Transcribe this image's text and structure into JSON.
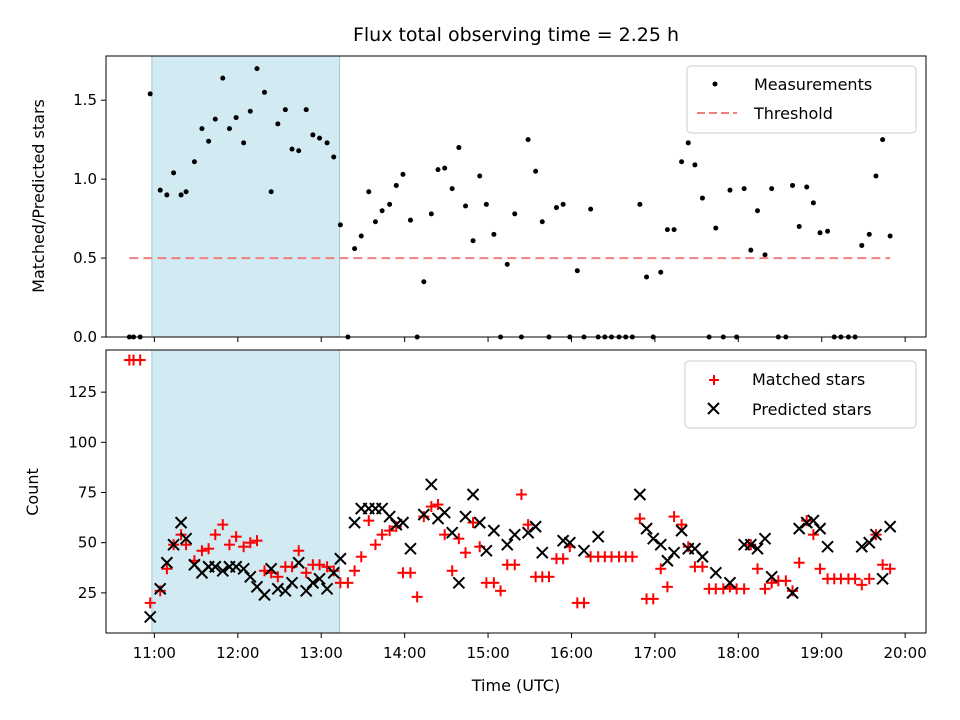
{
  "chart_data": [
    {
      "type": "scatter",
      "title": "Flux total observing time = 2.25 h",
      "xlabel": "",
      "ylabel": "Matched/Predicted stars",
      "xlim": [
        10.42,
        20.25
      ],
      "ylim": [
        0,
        1.78
      ],
      "yticks": [
        0.0,
        0.5,
        1.0,
        1.5
      ],
      "ytick_labels": [
        "0.0",
        "0.5",
        "1.0",
        "1.5"
      ],
      "xticks": [
        11,
        12,
        13,
        14,
        15,
        16,
        17,
        18,
        19,
        20
      ],
      "xtick_labels": [
        "",
        "",
        "",
        "",
        "",
        "",
        "",
        "",
        "",
        ""
      ],
      "highlight_span": [
        10.97,
        13.22
      ],
      "highlight_color": "#add8e6",
      "legend_position": "top-right",
      "series": [
        {
          "name": "Measurements",
          "marker": "dot",
          "color": "#000000",
          "x": [
            10.7,
            10.75,
            10.83,
            10.95,
            11.07,
            11.15,
            11.23,
            11.32,
            11.38,
            11.48,
            11.57,
            11.65,
            11.73,
            11.82,
            11.9,
            11.98,
            12.07,
            12.15,
            12.23,
            12.32,
            12.4,
            12.48,
            12.57,
            12.65,
            12.73,
            12.82,
            12.9,
            12.98,
            13.07,
            13.15,
            13.23,
            13.32,
            13.4,
            13.48,
            13.57,
            13.65,
            13.73,
            13.82,
            13.9,
            13.98,
            14.07,
            14.15,
            14.23,
            14.32,
            14.4,
            14.48,
            14.57,
            14.65,
            14.73,
            14.82,
            14.9,
            14.98,
            15.07,
            15.15,
            15.23,
            15.32,
            15.4,
            15.48,
            15.57,
            15.65,
            15.73,
            15.82,
            15.9,
            15.98,
            16.07,
            16.15,
            16.23,
            16.32,
            16.4,
            16.48,
            16.57,
            16.65,
            16.73,
            16.82,
            16.9,
            16.98,
            17.07,
            17.15,
            17.23,
            17.32,
            17.4,
            17.48,
            17.57,
            17.65,
            17.73,
            17.82,
            17.9,
            17.98,
            18.07,
            18.15,
            18.23,
            18.32,
            18.4,
            18.48,
            18.57,
            18.65,
            18.73,
            18.82,
            18.9,
            18.98,
            19.07,
            19.15,
            19.23,
            19.32,
            19.4,
            19.48,
            19.57,
            19.65,
            19.73,
            19.82
          ],
          "y": [
            0,
            0,
            0,
            1.54,
            0.93,
            0.9,
            1.04,
            0.9,
            0.92,
            1.11,
            1.32,
            1.24,
            1.38,
            1.64,
            1.32,
            1.39,
            1.23,
            1.43,
            1.7,
            1.55,
            0.92,
            1.35,
            1.44,
            1.19,
            1.18,
            1.44,
            1.28,
            1.26,
            1.23,
            1.14,
            0.71,
            0,
            0.56,
            0.64,
            0.92,
            0.73,
            0.8,
            0.84,
            0.96,
            1.03,
            0.74,
            0,
            0.35,
            0.78,
            1.06,
            1.07,
            0.94,
            1.2,
            0.83,
            0.61,
            1.02,
            0.84,
            0.65,
            0,
            0.46,
            0.78,
            0,
            1.25,
            1.05,
            0.73,
            0,
            0.82,
            0.84,
            0,
            0.42,
            0,
            0.81,
            0,
            0,
            0,
            0,
            0,
            0,
            0.84,
            0.38,
            0,
            0.41,
            0.68,
            0.68,
            1.11,
            1.23,
            1.09,
            0.88,
            0,
            0.69,
            0,
            0.93,
            0,
            0.94,
            0.55,
            0.8,
            0.52,
            0.94,
            0,
            0,
            0.96,
            0.7,
            0.95,
            0.85,
            0.66,
            0.67,
            0,
            0,
            0,
            0,
            0.58,
            0.65,
            1.02,
            1.25,
            0.64
          ]
        },
        {
          "name": "Threshold",
          "marker": "dashed-line",
          "color": "#f08080",
          "x": [
            10.7,
            19.82
          ],
          "y": [
            0.5,
            0.5
          ]
        }
      ]
    },
    {
      "type": "scatter",
      "title": "",
      "xlabel": "Time (UTC)",
      "ylabel": "Count",
      "xlim": [
        10.42,
        20.25
      ],
      "ylim": [
        5,
        146
      ],
      "yticks": [
        25,
        50,
        75,
        100,
        125
      ],
      "ytick_labels": [
        "25",
        "50",
        "75",
        "100",
        "125"
      ],
      "xticks": [
        11,
        12,
        13,
        14,
        15,
        16,
        17,
        18,
        19,
        20
      ],
      "xtick_labels": [
        "11:00",
        "12:00",
        "13:00",
        "14:00",
        "15:00",
        "16:00",
        "17:00",
        "18:00",
        "19:00",
        "20:00"
      ],
      "highlight_span": [
        10.97,
        13.22
      ],
      "highlight_color": "#add8e6",
      "legend_position": "top-right",
      "series": [
        {
          "name": "Matched stars",
          "marker": "plus",
          "color": "#ff0000",
          "x": [
            10.7,
            10.75,
            10.83,
            10.95,
            11.07,
            11.15,
            11.23,
            11.32,
            11.38,
            11.48,
            11.57,
            11.65,
            11.73,
            11.82,
            11.9,
            11.98,
            12.07,
            12.15,
            12.23,
            12.32,
            12.4,
            12.48,
            12.57,
            12.65,
            12.73,
            12.82,
            12.9,
            12.98,
            13.07,
            13.15,
            13.23,
            13.32,
            13.4,
            13.48,
            13.57,
            13.65,
            13.73,
            13.82,
            13.9,
            13.98,
            14.07,
            14.15,
            14.23,
            14.32,
            14.4,
            14.48,
            14.57,
            14.65,
            14.73,
            14.82,
            14.9,
            14.98,
            15.07,
            15.15,
            15.23,
            15.32,
            15.4,
            15.48,
            15.57,
            15.65,
            15.73,
            15.82,
            15.9,
            15.98,
            16.07,
            16.15,
            16.23,
            16.32,
            16.4,
            16.48,
            16.57,
            16.65,
            16.73,
            16.82,
            16.9,
            16.98,
            17.07,
            17.15,
            17.23,
            17.32,
            17.4,
            17.48,
            17.57,
            17.65,
            17.73,
            17.82,
            17.9,
            17.98,
            18.07,
            18.15,
            18.23,
            18.32,
            18.4,
            18.48,
            18.57,
            18.65,
            18.73,
            18.82,
            18.9,
            18.98,
            19.07,
            19.15,
            19.23,
            19.32,
            19.4,
            19.48,
            19.57,
            19.65,
            19.73,
            19.82
          ],
          "y": [
            141,
            141,
            141,
            20,
            26,
            37,
            49,
            54,
            49,
            41,
            46,
            47,
            54,
            59,
            49,
            53,
            48,
            50,
            51,
            36,
            35,
            33,
            38,
            38,
            46,
            35,
            39,
            39,
            38,
            36,
            30,
            30,
            36,
            43,
            61,
            49,
            54,
            56,
            58,
            35,
            35,
            23,
            63,
            68,
            69,
            54,
            36,
            52,
            45,
            60,
            48,
            30,
            30,
            26,
            39,
            39,
            74,
            59,
            33,
            33,
            33,
            42,
            42,
            48,
            20,
            20,
            43,
            43,
            43,
            43,
            43,
            43,
            43,
            62,
            22,
            22,
            37,
            28,
            63,
            59,
            48,
            38,
            38,
            27,
            27,
            27,
            28,
            27,
            27,
            49,
            37,
            27,
            30,
            31,
            31,
            26,
            40,
            61,
            54,
            37,
            32,
            32,
            32,
            32,
            32,
            29,
            32,
            54,
            39,
            37
          ]
        },
        {
          "name": "Predicted stars",
          "marker": "x",
          "color": "#000000",
          "x": [
            10.95,
            11.07,
            11.15,
            11.23,
            11.32,
            11.38,
            11.48,
            11.57,
            11.65,
            11.73,
            11.82,
            11.9,
            11.98,
            12.07,
            12.15,
            12.23,
            12.32,
            12.4,
            12.48,
            12.57,
            12.65,
            12.73,
            12.82,
            12.9,
            12.98,
            13.07,
            13.15,
            13.23,
            13.4,
            13.48,
            13.57,
            13.65,
            13.73,
            13.82,
            13.9,
            13.98,
            14.07,
            14.23,
            14.32,
            14.4,
            14.48,
            14.57,
            14.65,
            14.73,
            14.82,
            14.9,
            14.98,
            15.07,
            15.23,
            15.32,
            15.48,
            15.57,
            15.65,
            15.9,
            15.98,
            16.15,
            16.32,
            16.82,
            16.9,
            16.98,
            17.07,
            17.15,
            17.23,
            17.32,
            17.4,
            17.48,
            17.57,
            17.73,
            17.9,
            18.07,
            18.15,
            18.23,
            18.32,
            18.4,
            18.65,
            18.73,
            18.82,
            18.9,
            18.98,
            19.07,
            19.48,
            19.57,
            19.65,
            19.73,
            19.82
          ],
          "y": [
            13,
            27,
            40,
            49,
            60,
            52,
            39,
            35,
            38,
            38,
            36,
            38,
            38,
            37,
            33,
            28,
            24,
            37,
            27,
            26,
            30,
            40,
            26,
            30,
            32,
            27,
            35,
            42,
            60,
            67,
            67,
            67,
            67,
            63,
            59,
            60,
            47,
            64,
            79,
            62,
            65,
            55,
            30,
            63,
            74,
            60,
            46,
            56,
            49,
            54,
            55,
            58,
            45,
            51,
            50,
            46,
            53,
            74,
            57,
            52,
            49,
            41,
            45,
            56,
            47,
            47,
            43,
            35,
            30,
            49,
            49,
            47,
            52,
            33,
            25,
            57,
            60,
            61,
            57,
            48,
            48,
            50,
            54,
            32,
            58
          ]
        }
      ]
    }
  ]
}
